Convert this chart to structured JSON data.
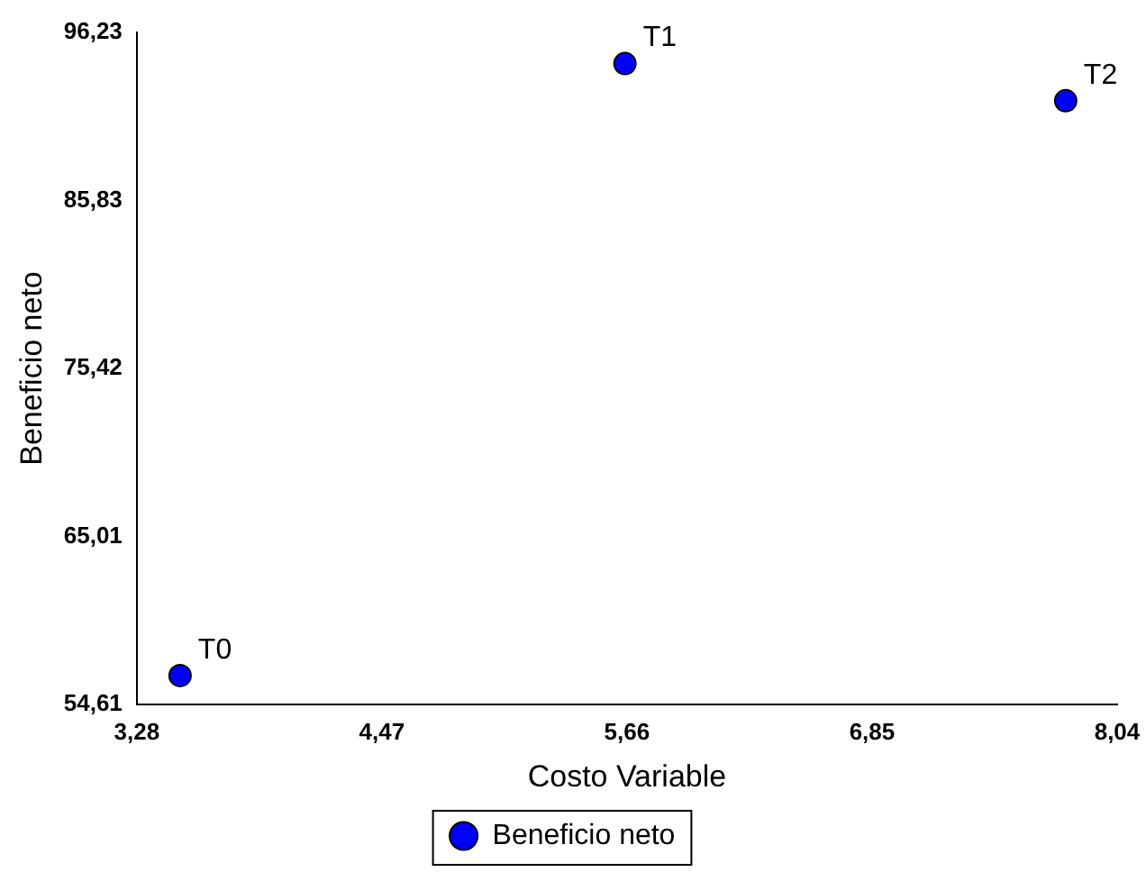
{
  "chart_data": {
    "type": "scatter",
    "xlabel": "Costo Variable",
    "ylabel": "Beneficio neto",
    "xlim": [
      3.28,
      8.04
    ],
    "ylim": [
      54.61,
      96.23
    ],
    "xticks": [
      {
        "value": 3.28,
        "label": "3,28"
      },
      {
        "value": 4.47,
        "label": "4,47"
      },
      {
        "value": 5.66,
        "label": "5,66"
      },
      {
        "value": 6.85,
        "label": "6,85"
      },
      {
        "value": 8.04,
        "label": "8,04"
      }
    ],
    "yticks": [
      {
        "value": 54.61,
        "label": "54,61"
      },
      {
        "value": 65.01,
        "label": "65,01"
      },
      {
        "value": 75.42,
        "label": "75,42"
      },
      {
        "value": 85.83,
        "label": "85,83"
      },
      {
        "value": 96.23,
        "label": "96,23"
      }
    ],
    "x": [
      3.49,
      5.65,
      7.79
    ],
    "series": [
      {
        "name": "Beneficio neto",
        "color": "#0000ff",
        "values": [
          56.4,
          94.3,
          92.0
        ]
      }
    ],
    "annotations": [
      {
        "text": "T0",
        "x": 3.49,
        "y": 56.4
      },
      {
        "text": "T1",
        "x": 5.65,
        "y": 94.3
      },
      {
        "text": "T2",
        "x": 7.79,
        "y": 92.0
      }
    ],
    "grid": false,
    "legend": "bottom",
    "marker": "circle"
  }
}
